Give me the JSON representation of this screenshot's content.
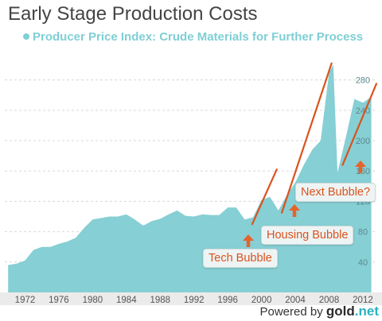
{
  "title": "Early Stage Production Costs",
  "footer": {
    "prefix": "Powered by ",
    "brand": "gold",
    "tld": ".net"
  },
  "annotations": {
    "tech": "Tech Bubble",
    "housing": "Housing Bubble",
    "next": "Next Bubble?"
  },
  "colors": {
    "area": "#86cfd4",
    "trend": "#d9531e",
    "arrow": "#e8622a",
    "legend": "#7fcfd5"
  },
  "chart_data": {
    "type": "area",
    "series": [
      {
        "name": "Producer Price Index: Crude Materials for Further Process",
        "x": [
          1970,
          1971,
          1972,
          1973,
          1974,
          1975,
          1976,
          1977,
          1978,
          1979,
          1980,
          1981,
          1982,
          1983,
          1984,
          1985,
          1986,
          1987,
          1988,
          1989,
          1990,
          1991,
          1992,
          1993,
          1994,
          1995,
          1996,
          1997,
          1998,
          1999,
          2000,
          2001,
          2002,
          2003,
          2004,
          2005,
          2006,
          2007,
          2008,
          2008.5,
          2009,
          2010,
          2011,
          2012,
          2013
        ],
        "values": [
          36,
          38,
          42,
          56,
          60,
          60,
          64,
          67,
          72,
          85,
          96,
          98,
          100,
          100,
          103,
          96,
          88,
          94,
          97,
          103,
          108,
          101,
          100,
          103,
          102,
          102,
          112,
          112,
          96,
          99,
          122,
          126,
          108,
          128,
          145,
          168,
          188,
          200,
          290,
          300,
          158,
          205,
          255,
          250,
          258
        ]
      }
    ],
    "xlim": [
      1969.6,
      2013.7
    ],
    "ylim": [
      0,
      310
    ],
    "x_tick_labels": [
      "1972",
      "1976",
      "1980",
      "1984",
      "1988",
      "1992",
      "1996",
      "2000",
      "2004",
      "2008",
      "2012"
    ],
    "y_tick_labels": [
      "40",
      "80",
      "120",
      "160",
      "200",
      "240",
      "280"
    ],
    "grid": "horizontal dashed",
    "legend": "top-left",
    "trend_lines": [
      {
        "from": [
          1998.9,
          90
        ],
        "to": [
          2001.8,
          162
        ]
      },
      {
        "from": [
          2002.4,
          105
        ],
        "to": [
          2008.3,
          302
        ]
      },
      {
        "from": [
          2009.6,
          168
        ],
        "to": [
          2013.6,
          275
        ]
      }
    ]
  }
}
